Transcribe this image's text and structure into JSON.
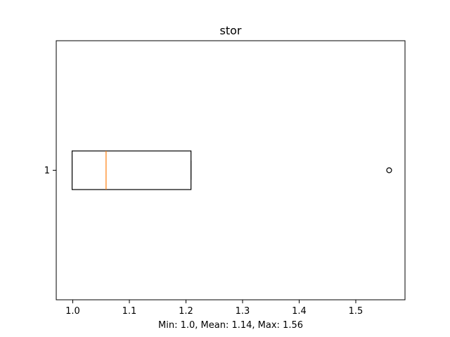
{
  "chart_data": {
    "type": "boxplot",
    "orientation": "horizontal",
    "title": "stor",
    "xlabel": "Min: 1.0, Mean: 1.14, Max: 1.56",
    "ylabel": "",
    "categories": [
      "1"
    ],
    "box": {
      "whisker_low": 1.0,
      "q1": 1.0,
      "median": 1.06,
      "q3": 1.21,
      "whisker_high": 1.21,
      "outliers": [
        1.56
      ]
    },
    "xlim": [
      0.972,
      1.588
    ],
    "x_ticks": [
      "1.0",
      "1.1",
      "1.2",
      "1.3",
      "1.4",
      "1.5"
    ],
    "y_ticks": [
      "1"
    ],
    "grid": false,
    "legend": "none",
    "colors": {
      "box": "#000000",
      "median": "#ff7f0e",
      "outlier": "#000000",
      "axes": "#000000"
    }
  }
}
